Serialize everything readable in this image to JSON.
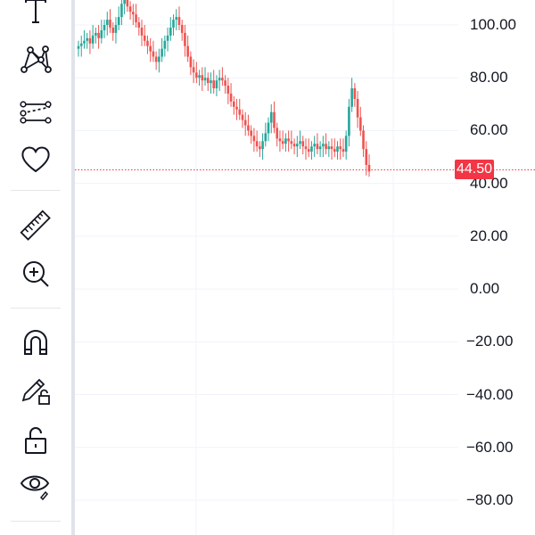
{
  "toolbar": {
    "tools": [
      {
        "name": "text-tool",
        "icon": "text-icon"
      },
      {
        "name": "pattern-tool",
        "icon": "pattern-icon"
      },
      {
        "name": "prediction-tool",
        "icon": "prediction-icon"
      },
      {
        "name": "favorites-tool",
        "icon": "heart-icon"
      },
      {
        "name": "measure-tool",
        "icon": "ruler-icon"
      },
      {
        "name": "zoom-tool",
        "icon": "zoom-in-icon"
      },
      {
        "name": "magnet-tool",
        "icon": "magnet-icon"
      },
      {
        "name": "lock-drawings-tool",
        "icon": "pencil-lock-icon"
      },
      {
        "name": "lock-all-tool",
        "icon": "lock-open-icon"
      },
      {
        "name": "hide-drawings-tool",
        "icon": "eye-icon"
      }
    ]
  },
  "price_axis": {
    "labels": [
      "100.00",
      "80.00",
      "60.00",
      "40.00",
      "20.00",
      "0.00",
      "−20.00",
      "−40.00",
      "−60.00",
      "−80.00"
    ]
  },
  "last_price": {
    "value": "44.50",
    "color": "#f23645"
  },
  "colors": {
    "up": "#26a69a",
    "down": "#ef5350",
    "grid": "#f0f3fa",
    "axis_text": "#131722"
  },
  "chart_data": {
    "type": "candlestick",
    "ylim": [
      -90,
      110
    ],
    "last_price": 44.5,
    "yticks": [
      100,
      80,
      60,
      40,
      20,
      0,
      -20,
      -40,
      -60,
      -80
    ],
    "close_series": [
      92,
      93,
      94,
      95,
      93,
      96,
      97,
      95,
      98,
      100,
      102,
      99,
      97,
      100,
      103,
      108,
      110,
      107,
      105,
      104,
      101,
      99,
      96,
      94,
      92,
      90,
      88,
      86,
      88,
      91,
      94,
      96,
      99,
      102,
      103,
      100,
      97,
      92,
      88,
      84,
      82,
      80,
      81,
      79,
      80,
      78,
      79,
      76,
      79,
      80,
      79,
      77,
      74,
      71,
      69,
      68,
      66,
      64,
      62,
      60,
      58,
      56,
      54,
      53,
      56,
      59,
      63,
      67,
      61,
      57,
      56,
      55,
      57,
      56,
      55,
      54,
      55,
      56,
      54,
      53,
      52,
      54,
      55,
      53,
      54,
      55,
      53,
      54,
      53,
      52,
      54,
      53,
      52,
      58,
      69,
      76,
      72,
      65,
      60,
      53,
      47,
      44.5
    ]
  }
}
